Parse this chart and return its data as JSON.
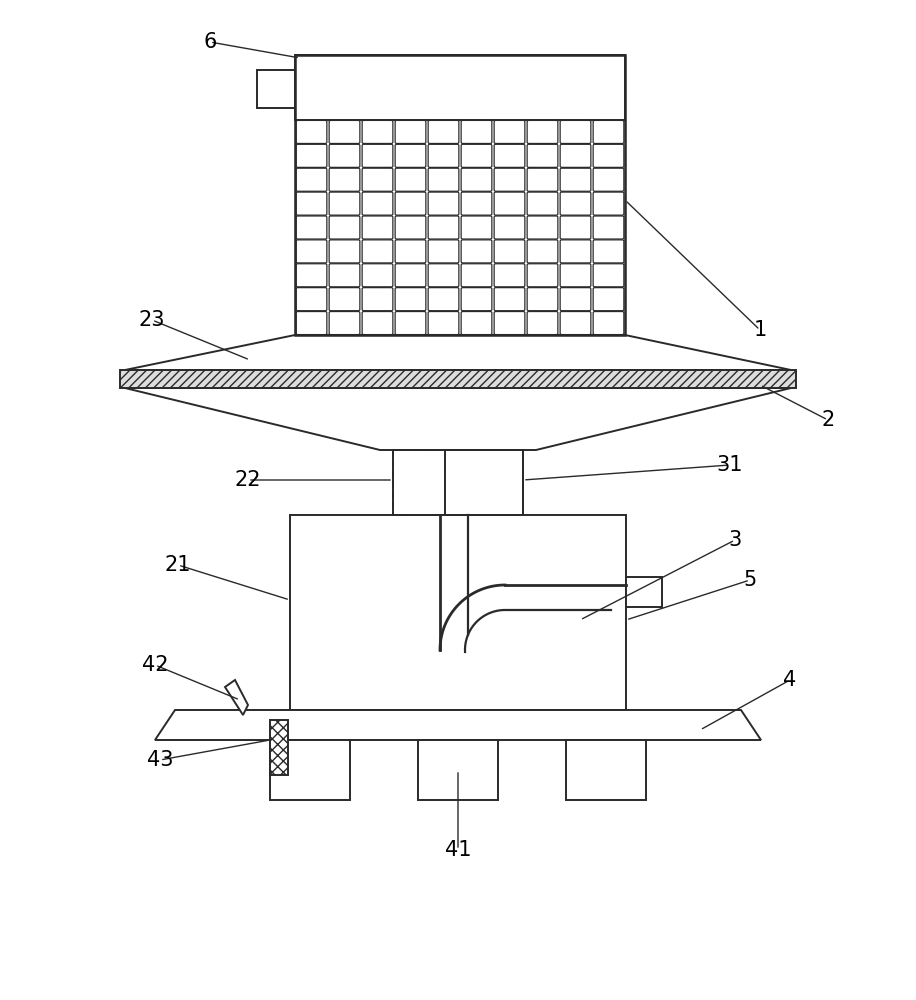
{
  "bg_color": "#ffffff",
  "line_color": "#2a2a2a",
  "lw": 1.4,
  "fig_w": 9.16,
  "fig_h": 10.0,
  "dpi": 100
}
